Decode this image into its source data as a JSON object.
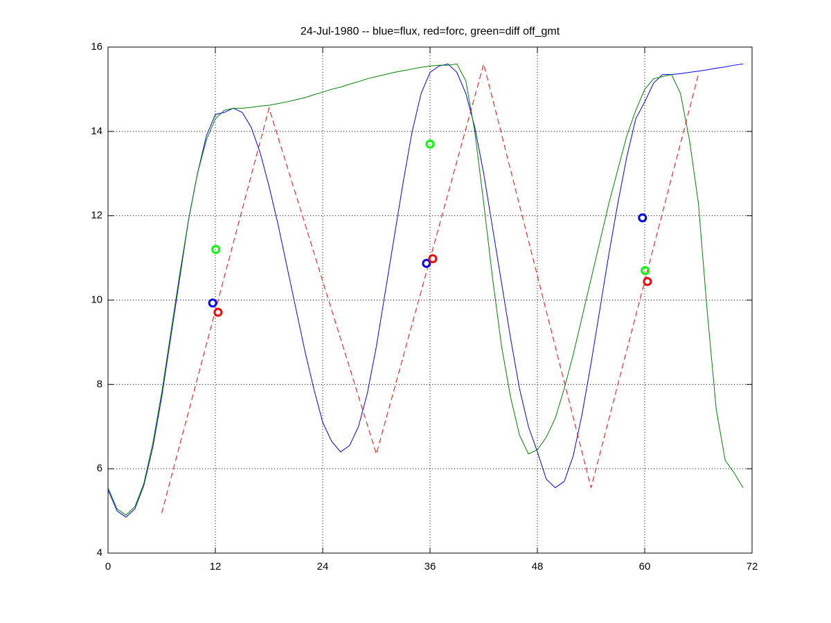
{
  "chart_data": {
    "type": "line",
    "title": "24-Jul-1980 -- blue=flux, red=forc, green=diff off_gmt",
    "xlim": [
      0,
      72
    ],
    "xticks": [
      0,
      12,
      24,
      36,
      48,
      60,
      72
    ],
    "ylim": [
      4,
      16
    ],
    "yticks": [
      4,
      6,
      8,
      10,
      12,
      14,
      16
    ],
    "grid": true,
    "series": [
      {
        "color": "#0000ff",
        "linestyle": "-",
        "x": [
          0,
          1,
          2,
          3,
          4,
          5,
          6,
          7,
          8,
          9,
          10,
          11,
          12,
          13,
          14,
          15,
          16,
          17,
          18,
          19,
          20,
          21,
          22,
          23,
          24,
          25,
          26,
          27,
          28,
          29,
          30,
          31,
          32,
          33,
          34,
          35,
          36,
          37,
          38,
          39,
          40,
          41,
          42,
          43,
          44,
          45,
          46,
          47,
          48,
          49,
          50,
          51,
          52,
          53,
          54,
          55,
          56,
          57,
          58,
          59,
          60,
          61,
          62,
          63,
          64,
          65,
          66,
          67,
          68,
          69,
          70,
          71
        ],
        "values": [
          5.5,
          5.0,
          4.85,
          5.05,
          5.6,
          6.5,
          7.7,
          9.1,
          10.5,
          11.9,
          13.0,
          13.9,
          14.4,
          14.45,
          14.55,
          14.45,
          14.1,
          13.5,
          12.7,
          11.8,
          10.8,
          9.8,
          8.8,
          7.9,
          7.1,
          6.65,
          6.4,
          6.55,
          7.0,
          7.8,
          8.9,
          10.2,
          11.5,
          12.8,
          14.0,
          14.9,
          15.4,
          15.55,
          15.6,
          15.4,
          14.9,
          14.1,
          13.0,
          11.7,
          10.4,
          9.1,
          7.9,
          7.0,
          6.4,
          5.75,
          5.55,
          5.7,
          6.3,
          7.3,
          8.5,
          9.8,
          11.1,
          12.3,
          13.4,
          14.3,
          14.7,
          15.15,
          15.35,
          15.35,
          15.37,
          15.4,
          15.43,
          15.46,
          15.5,
          15.53,
          15.57,
          15.6
        ]
      },
      {
        "color": "#008000",
        "linestyle": "-",
        "x": [
          0,
          1,
          2,
          3,
          4,
          5,
          6,
          7,
          8,
          9,
          10,
          11,
          12,
          13,
          14,
          15,
          16,
          17,
          18,
          19,
          20,
          21,
          22,
          23,
          24,
          25,
          26,
          27,
          28,
          29,
          30,
          31,
          32,
          33,
          34,
          35,
          36,
          37,
          38,
          39,
          40,
          41,
          42,
          43,
          44,
          45,
          46,
          47,
          48,
          49,
          50,
          51,
          52,
          53,
          54,
          55,
          56,
          57,
          58,
          59,
          60,
          61,
          62,
          63,
          64,
          65,
          66,
          67,
          68,
          69,
          70,
          71
        ],
        "values": [
          5.55,
          5.05,
          4.9,
          5.1,
          5.65,
          6.6,
          7.8,
          9.2,
          10.6,
          11.9,
          13.0,
          13.8,
          14.3,
          14.5,
          14.55,
          14.55,
          14.57,
          14.6,
          14.62,
          14.66,
          14.7,
          14.75,
          14.8,
          14.87,
          14.93,
          15.0,
          15.05,
          15.12,
          15.18,
          15.25,
          15.3,
          15.35,
          15.4,
          15.44,
          15.48,
          15.52,
          15.55,
          15.57,
          15.57,
          15.6,
          15.2,
          14.0,
          12.3,
          10.5,
          8.9,
          7.7,
          6.8,
          6.35,
          6.45,
          6.75,
          7.2,
          7.9,
          8.7,
          9.6,
          10.5,
          11.4,
          12.3,
          13.1,
          13.9,
          14.5,
          15.0,
          15.25,
          15.3,
          15.35,
          14.9,
          13.8,
          12.3,
          9.7,
          7.4,
          6.2,
          5.9,
          5.55
        ]
      },
      {
        "color": "#ff0000",
        "linestyle": "--",
        "x": [
          6,
          18,
          30,
          42,
          54,
          66
        ],
        "values": [
          4.95,
          14.55,
          6.35,
          15.6,
          5.55,
          15.35
        ]
      },
      {
        "color": "#0000ff",
        "marker": "o",
        "x": [
          11.7,
          35.6,
          59.75
        ],
        "values": [
          9.93,
          10.87,
          11.95
        ]
      },
      {
        "color": "#ff0000",
        "marker": "o",
        "x": [
          12.3,
          36.3,
          60.3
        ],
        "values": [
          9.71,
          10.98,
          10.44
        ]
      },
      {
        "color": "#00ff00",
        "marker": "o",
        "x": [
          12.05,
          36.0,
          60.05
        ],
        "values": [
          11.2,
          13.7,
          10.7
        ]
      }
    ]
  }
}
